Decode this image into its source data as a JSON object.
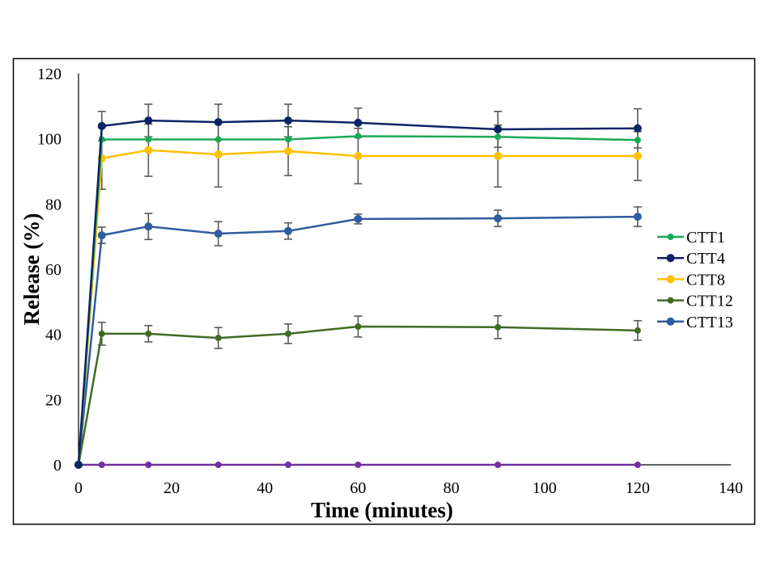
{
  "chart_data": {
    "type": "line",
    "title": "",
    "xlabel": "Time (minutes)",
    "ylabel": "Release (%)",
    "xlim": [
      0,
      140
    ],
    "ylim": [
      0,
      120
    ],
    "xticks": [
      0,
      20,
      40,
      60,
      80,
      100,
      120,
      140
    ],
    "yticks": [
      0,
      20,
      40,
      60,
      80,
      100,
      120
    ],
    "grid": false,
    "legend_position": "right",
    "x": [
      0,
      5,
      15,
      30,
      45,
      60,
      90,
      120
    ],
    "series": [
      {
        "name": "CTT1",
        "color": "#1aaa55",
        "in_legend": true,
        "marker": "small",
        "values": [
          0,
          99.8,
          99.8,
          99.8,
          99.8,
          100.8,
          100.6,
          99.6
        ],
        "errors": [
          0,
          0,
          0,
          0,
          0,
          0,
          0,
          0
        ]
      },
      {
        "name": "CTT4",
        "color": "#0b2466",
        "in_legend": true,
        "marker": "large",
        "values": [
          0,
          103.9,
          105.6,
          105.1,
          105.6,
          104.9,
          102.9,
          103.2
        ],
        "errors": [
          0,
          4.5,
          5.0,
          5.5,
          5.0,
          4.5,
          5.5,
          6.0
        ]
      },
      {
        "name": "CTT8",
        "color": "#ffc000",
        "in_legend": true,
        "marker": "large",
        "values": [
          0,
          94.0,
          96.5,
          95.2,
          96.2,
          94.7,
          94.7,
          94.7
        ],
        "errors": [
          0,
          9.5,
          8.0,
          10.0,
          7.5,
          8.5,
          9.5,
          7.5
        ]
      },
      {
        "name": "CTT12",
        "color": "#3f6b24",
        "in_legend": true,
        "marker": "small",
        "values": [
          0,
          40.2,
          40.2,
          38.9,
          40.2,
          42.4,
          42.2,
          41.2
        ],
        "errors": [
          0,
          3.5,
          2.5,
          3.2,
          3.0,
          3.2,
          3.5,
          3.0
        ]
      },
      {
        "name": "CTT13",
        "color": "#2e5c9e",
        "in_legend": true,
        "marker": "large",
        "values": [
          0,
          70.4,
          73.1,
          70.9,
          71.7,
          75.4,
          75.6,
          76.1
        ],
        "errors": [
          0,
          2.5,
          4.0,
          3.7,
          2.5,
          1.5,
          2.5,
          3.0
        ]
      },
      {
        "name": "",
        "color": "#7030a0",
        "in_legend": false,
        "marker": "small",
        "values": [
          0,
          0,
          0,
          0,
          0,
          0,
          0,
          0
        ],
        "errors": [
          0,
          0,
          0,
          0,
          0,
          0,
          0,
          0
        ]
      }
    ],
    "error_bar_color": "#595959"
  }
}
